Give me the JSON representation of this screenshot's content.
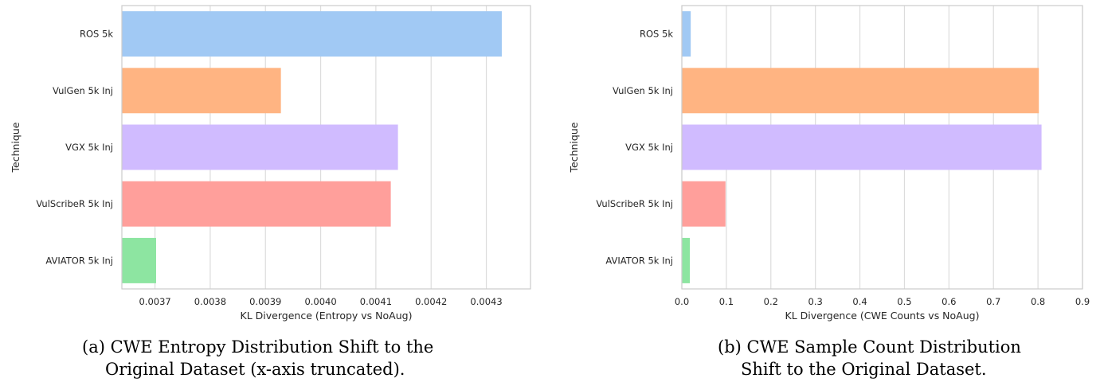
{
  "chart_data": [
    {
      "type": "bar",
      "orientation": "horizontal",
      "categories": [
        "ROS 5k",
        "VulGen 5k Inj",
        "VGX 5k Inj",
        "VulScribeR 5k Inj",
        "AVIATOR 5k Inj"
      ],
      "values": [
        0.004328,
        0.003928,
        0.00414,
        0.004127,
        0.003702
      ],
      "colors": [
        "#a1c9f4",
        "#ffb482",
        "#d0bbff",
        "#ff9f9b",
        "#8de5a1"
      ],
      "xlim": [
        0.00364,
        0.00438
      ],
      "xticks": [
        0.0037,
        0.0038,
        0.0039,
        0.004,
        0.0041,
        0.0042,
        0.0043
      ],
      "xtick_labels": [
        "0.0037",
        "0.0038",
        "0.0039",
        "0.0040",
        "0.0041",
        "0.0042",
        "0.0043"
      ],
      "xlabel": "KL Divergence (Entropy vs NoAug)",
      "ylabel": "Technique",
      "grid": "vertical",
      "caption_lines": [
        "(a) CWE Entropy Distribution Shift to the",
        "Original Dataset (x-axis truncated)."
      ]
    },
    {
      "type": "bar",
      "orientation": "horizontal",
      "categories": [
        "ROS 5k",
        "VulGen 5k Inj",
        "VGX 5k Inj",
        "VulScribeR 5k Inj",
        "AVIATOR 5k Inj"
      ],
      "values": [
        0.02,
        0.802,
        0.808,
        0.098,
        0.018
      ],
      "colors": [
        "#a1c9f4",
        "#ffb482",
        "#d0bbff",
        "#ff9f9b",
        "#8de5a1"
      ],
      "xlim": [
        0.0,
        0.9
      ],
      "xticks": [
        0.0,
        0.1,
        0.2,
        0.3,
        0.4,
        0.5,
        0.6,
        0.7,
        0.8,
        0.9
      ],
      "xtick_labels": [
        "0.0",
        "0.1",
        "0.2",
        "0.3",
        "0.4",
        "0.5",
        "0.6",
        "0.7",
        "0.8",
        "0.9"
      ],
      "xlabel": "KL Divergence (CWE Counts vs NoAug)",
      "ylabel": "Technique",
      "grid": "vertical",
      "caption_lines": [
        "(b) CWE Sample Count Distribution",
        "Shift to the Original Dataset."
      ]
    }
  ]
}
